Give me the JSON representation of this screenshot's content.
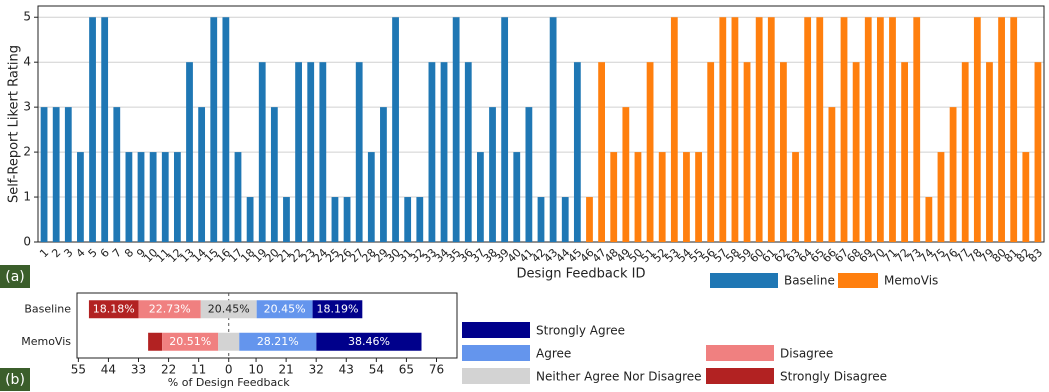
{
  "chart_data": [
    {
      "type": "bar",
      "panel_label": "(a)",
      "xlabel": "Design Feedback ID",
      "ylabel": "Self-Report Likert Rating",
      "categories": [
        "1",
        "2",
        "3",
        "4",
        "5",
        "6",
        "7",
        "8",
        "9",
        "10",
        "11",
        "12",
        "13",
        "14",
        "15",
        "16",
        "17",
        "18",
        "19",
        "20",
        "21",
        "22",
        "23",
        "24",
        "25",
        "26",
        "27",
        "28",
        "29",
        "30",
        "31",
        "32",
        "33",
        "34",
        "35",
        "36",
        "37",
        "38",
        "39",
        "40",
        "41",
        "42",
        "43",
        "44",
        "45",
        "46",
        "47",
        "48",
        "49",
        "50",
        "51",
        "52",
        "53",
        "54",
        "55",
        "56",
        "57",
        "58",
        "59",
        "60",
        "61",
        "62",
        "63",
        "64",
        "65",
        "66",
        "67",
        "68",
        "69",
        "70",
        "71",
        "72",
        "73",
        "74",
        "75",
        "76",
        "77",
        "78",
        "79",
        "80",
        "81",
        "82",
        "83"
      ],
      "series": [
        {
          "name": "Baseline",
          "color": "#1f77b4",
          "values": [
            3,
            3,
            3,
            2,
            5,
            5,
            3,
            2,
            2,
            2,
            2,
            2,
            4,
            3,
            5,
            5,
            2,
            1,
            4,
            3,
            1,
            4,
            4,
            4,
            1,
            1,
            4,
            2,
            3,
            5,
            1,
            1,
            4,
            4,
            5,
            4,
            2,
            3,
            5,
            2,
            3,
            1,
            5,
            1,
            4,
            null,
            null,
            null,
            null,
            null,
            null,
            null,
            null,
            null,
            null,
            null,
            null,
            null,
            null,
            null,
            null,
            null,
            null,
            null,
            null,
            null,
            null,
            null,
            null,
            null,
            null,
            null,
            null,
            null,
            null,
            null,
            null,
            null,
            null,
            null,
            null,
            null,
            null
          ]
        },
        {
          "name": "MemoVis",
          "color": "#ff7f0e",
          "values": [
            null,
            null,
            null,
            null,
            null,
            null,
            null,
            null,
            null,
            null,
            null,
            null,
            null,
            null,
            null,
            null,
            null,
            null,
            null,
            null,
            null,
            null,
            null,
            null,
            null,
            null,
            null,
            null,
            null,
            null,
            null,
            null,
            null,
            null,
            null,
            null,
            null,
            null,
            null,
            null,
            null,
            null,
            null,
            null,
            null,
            1,
            4,
            2,
            3,
            2,
            4,
            2,
            5,
            2,
            2,
            4,
            5,
            5,
            4,
            5,
            5,
            4,
            2,
            5,
            5,
            3,
            5,
            4,
            5,
            5,
            5,
            4,
            5,
            1,
            2,
            3,
            4,
            5,
            4,
            5,
            5,
            2,
            4
          ]
        }
      ],
      "ylim": [
        0,
        5.25
      ],
      "yticks": [
        0,
        1,
        2,
        3,
        4,
        5
      ],
      "grid": true
    },
    {
      "type": "diverging_bar",
      "panel_label": "(b)",
      "xlabel": "% of Design Feedback",
      "categories": [
        "Baseline",
        "MemoVis"
      ],
      "series": [
        {
          "name": "Strongly Disagree",
          "color": "#b22222",
          "values": [
            18.18,
            5.13
          ],
          "value_labels": [
            "18.18%",
            null
          ]
        },
        {
          "name": "Disagree",
          "color": "#f08080",
          "values": [
            22.73,
            20.51
          ],
          "value_labels": [
            "22.73%",
            "20.51%"
          ]
        },
        {
          "name": "Neither Agree Nor Disagree",
          "color": "#d3d3d3",
          "values": [
            20.45,
            7.69
          ],
          "value_labels": [
            "20.45%",
            null
          ]
        },
        {
          "name": "Agree",
          "color": "#6495ed",
          "values": [
            20.45,
            28.21
          ],
          "value_labels": [
            "20.45%",
            "28.21%"
          ]
        },
        {
          "name": "Strongly Agree",
          "color": "#00008b",
          "values": [
            18.19,
            38.46
          ],
          "value_labels": [
            "18.19%",
            "38.46%"
          ]
        }
      ],
      "xlim": [
        -55.5,
        83.5
      ],
      "xticks": [
        {
          "value": -55,
          "label": "55"
        },
        {
          "value": -44,
          "label": "44"
        },
        {
          "value": -33,
          "label": "33"
        },
        {
          "value": -22,
          "label": "22"
        },
        {
          "value": -11,
          "label": "11"
        },
        0,
        10,
        21,
        32,
        43,
        54,
        65,
        76
      ]
    }
  ]
}
